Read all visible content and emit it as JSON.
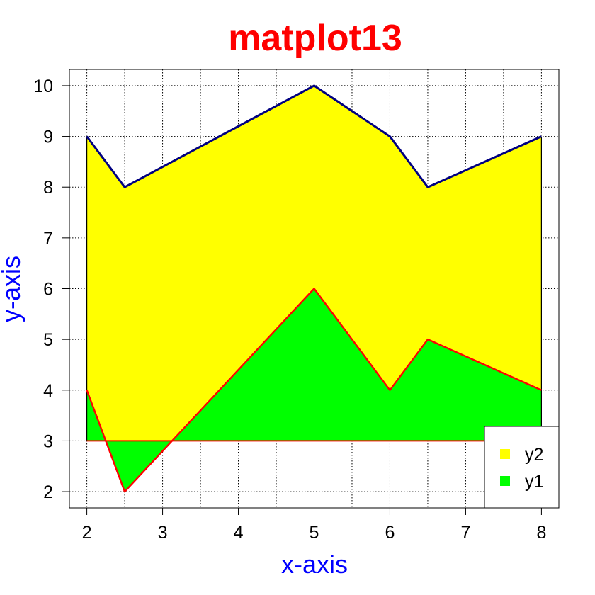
{
  "chart_data": {
    "type": "area",
    "title": "matplot13",
    "xlabel": "x-axis",
    "ylabel": "y-axis",
    "x": [
      2,
      2.5,
      5,
      6,
      6.5,
      8
    ],
    "series": [
      {
        "name": "y1",
        "values": [
          4,
          2,
          6,
          4,
          5,
          4
        ],
        "fill": "#00ff00",
        "line": "#ff0000"
      },
      {
        "name": "y2",
        "values": [
          9,
          8,
          10,
          9,
          8,
          9
        ],
        "fill": "#ffff00",
        "line": "#000080"
      }
    ],
    "baseline": 3,
    "xlim": [
      1.77,
      8.23
    ],
    "ylim": [
      1.68,
      10.32
    ],
    "xticks": [
      2,
      3,
      4,
      5,
      6,
      7,
      8
    ],
    "yticks": [
      2,
      3,
      4,
      5,
      6,
      7,
      8,
      9,
      10
    ],
    "xgrid": [
      2,
      2.5,
      3,
      3.5,
      4,
      4.5,
      5,
      5.5,
      6,
      6.5,
      7,
      7.5,
      8
    ],
    "grid": true,
    "legend_position": "bottom-right",
    "legend_order": [
      "y2",
      "y1"
    ],
    "colors": {
      "title": "#ff0000",
      "axis_label": "#0000ff"
    }
  }
}
